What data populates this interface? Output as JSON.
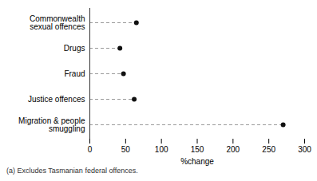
{
  "chart_data": {
    "type": "lollipop",
    "orientation": "horizontal",
    "categories": [
      "Commonwealth\nsexual offences",
      "Drugs",
      "Fraud",
      "Justice offences",
      "Migration & people\nsmuggling"
    ],
    "values": [
      65,
      42,
      47,
      62,
      270
    ],
    "xlabel": "%change",
    "xlim": [
      0,
      300
    ],
    "xticks": [
      0,
      50,
      100,
      150,
      200,
      250,
      300
    ],
    "caption": "(a) Excludes Tasmanian federal offences.",
    "color": "#111111",
    "marker": "circle",
    "line_style": "dashed",
    "grid": false
  }
}
